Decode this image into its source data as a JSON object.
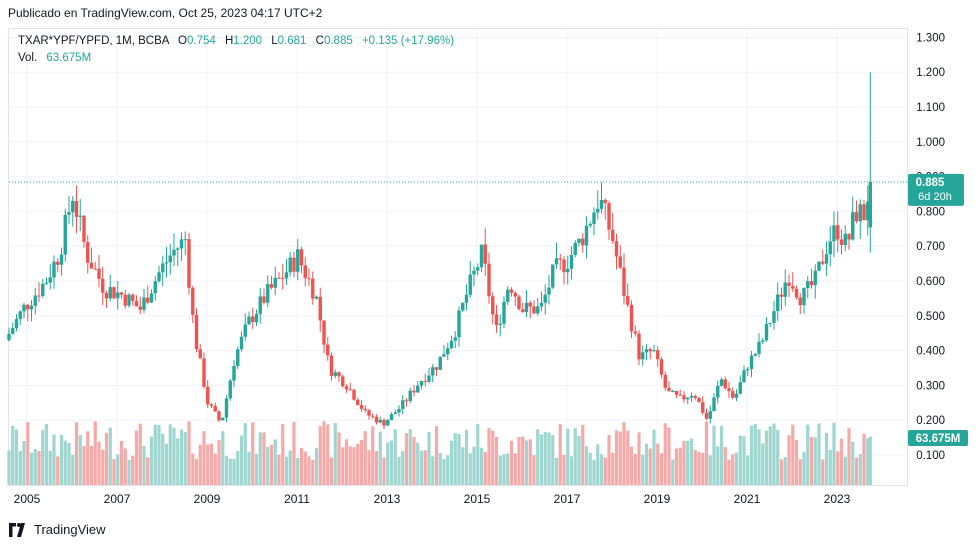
{
  "header": {
    "published": "Publicado en TradingView.com, Oct 25, 2023 04:17 UTC+2"
  },
  "legend": {
    "symbol": "TXAR*YPF/YPFD, 1M, BCBA",
    "open_label": "O",
    "open": "0.754",
    "high_label": "H",
    "high": "1.200",
    "low_label": "L",
    "low": "0.681",
    "close_label": "C",
    "close": "0.885",
    "change": "+0.135 (+17.96%)",
    "vol_label": "Vol.",
    "vol_value": "63.675M"
  },
  "price_badge": {
    "price": "0.885",
    "countdown": "6d 20h"
  },
  "volume_badge": "63.675M",
  "footer": {
    "brand": "TradingView"
  },
  "colors": {
    "up": "#26a69a",
    "down": "#ef5350",
    "up_vol": "#9fd6d0",
    "down_vol": "#f5a9a9",
    "grid": "#f0f3fa"
  },
  "chart_data": {
    "type": "candlestick",
    "interval": "1M",
    "y_ticks": [
      "1.300",
      "1.200",
      "1.100",
      "1.000",
      "0.900",
      "0.800",
      "0.700",
      "0.600",
      "0.500",
      "0.400",
      "0.300",
      "0.200",
      "0.100"
    ],
    "y_range": [
      0.02,
      1.3
    ],
    "x_ticks": [
      "2005",
      "2007",
      "2009",
      "2011",
      "2013",
      "2015",
      "2017",
      "2019",
      "2021",
      "2023"
    ],
    "x_range": [
      2005.0,
      2024.2
    ],
    "last_price": 0.885,
    "anchors": [
      [
        2004.6,
        0.43
      ],
      [
        2005.0,
        0.52
      ],
      [
        2005.5,
        0.6
      ],
      [
        2005.8,
        0.68
      ],
      [
        2006.1,
        0.85
      ],
      [
        2006.4,
        0.68
      ],
      [
        2006.8,
        0.58
      ],
      [
        2007.2,
        0.56
      ],
      [
        2007.6,
        0.52
      ],
      [
        2008.0,
        0.62
      ],
      [
        2008.3,
        0.68
      ],
      [
        2008.6,
        0.72
      ],
      [
        2008.8,
        0.45
      ],
      [
        2009.1,
        0.25
      ],
      [
        2009.4,
        0.19
      ],
      [
        2009.7,
        0.38
      ],
      [
        2010.0,
        0.48
      ],
      [
        2010.4,
        0.56
      ],
      [
        2010.8,
        0.62
      ],
      [
        2011.1,
        0.67
      ],
      [
        2011.5,
        0.56
      ],
      [
        2011.8,
        0.35
      ],
      [
        2012.2,
        0.3
      ],
      [
        2012.6,
        0.22
      ],
      [
        2013.0,
        0.19
      ],
      [
        2013.4,
        0.24
      ],
      [
        2013.8,
        0.31
      ],
      [
        2014.2,
        0.36
      ],
      [
        2014.6,
        0.46
      ],
      [
        2014.9,
        0.58
      ],
      [
        2015.2,
        0.68
      ],
      [
        2015.5,
        0.45
      ],
      [
        2015.8,
        0.6
      ],
      [
        2016.1,
        0.52
      ],
      [
        2016.5,
        0.52
      ],
      [
        2016.8,
        0.63
      ],
      [
        2017.1,
        0.66
      ],
      [
        2017.4,
        0.72
      ],
      [
        2017.8,
        0.84
      ],
      [
        2018.1,
        0.72
      ],
      [
        2018.4,
        0.54
      ],
      [
        2018.7,
        0.38
      ],
      [
        2019.0,
        0.4
      ],
      [
        2019.3,
        0.28
      ],
      [
        2019.6,
        0.26
      ],
      [
        2019.9,
        0.28
      ],
      [
        2020.2,
        0.2
      ],
      [
        2020.5,
        0.32
      ],
      [
        2020.8,
        0.26
      ],
      [
        2021.1,
        0.36
      ],
      [
        2021.4,
        0.42
      ],
      [
        2021.7,
        0.52
      ],
      [
        2022.0,
        0.62
      ],
      [
        2022.3,
        0.55
      ],
      [
        2022.6,
        0.6
      ],
      [
        2022.9,
        0.72
      ],
      [
        2023.1,
        0.75
      ],
      [
        2023.3,
        0.7
      ],
      [
        2023.5,
        0.8
      ],
      [
        2023.7,
        0.79
      ],
      [
        2023.81,
        0.885
      ]
    ],
    "last_candle": {
      "open": 0.754,
      "high": 1.2,
      "low": 0.681,
      "close": 0.885,
      "volume": "63.675M"
    }
  }
}
